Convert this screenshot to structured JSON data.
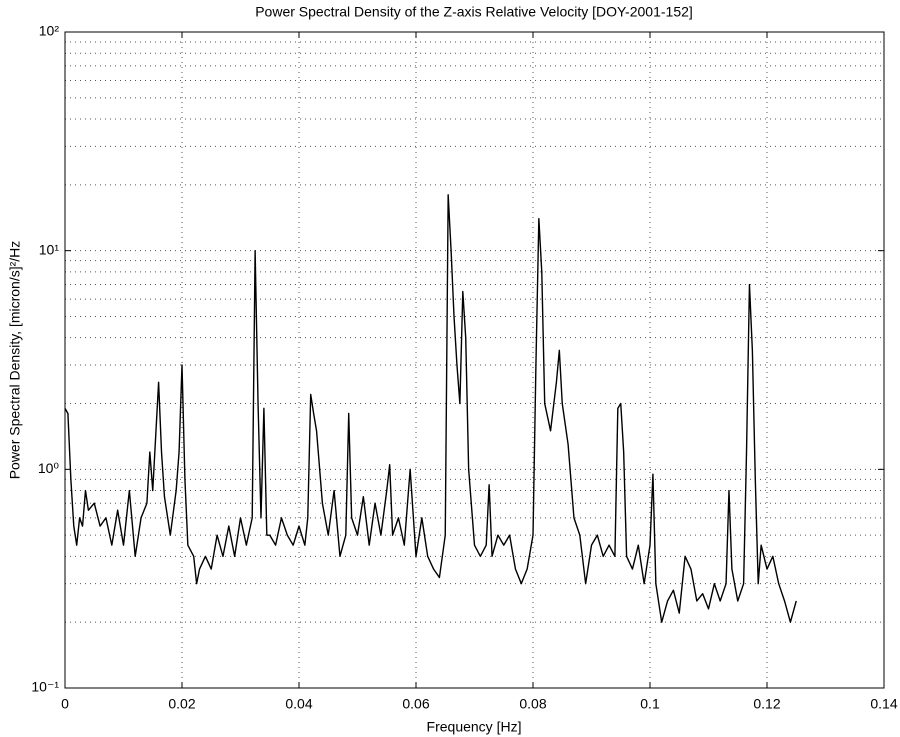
{
  "chart_data": {
    "type": "line",
    "title": "Power Spectral Density of the Z-axis Relative Velocity [DOY-2001-152]",
    "xlabel": "Frequency [Hz]",
    "ylabel": "Power Spectral Density, [micron/s]²/Hz",
    "color": "#000000",
    "yscale": "log",
    "grid": true,
    "minor_grid": true,
    "xlim": [
      0,
      0.14
    ],
    "xticks": [
      0,
      0.02,
      0.04,
      0.06,
      0.08,
      0.1,
      0.12,
      0.14
    ],
    "ylim": [
      0.1,
      100
    ],
    "yticks": [
      {
        "value": 0.1,
        "label": "10⁻¹"
      },
      {
        "value": 1,
        "label": "10⁰"
      },
      {
        "value": 10,
        "label": "10¹"
      },
      {
        "value": 100,
        "label": "10²"
      }
    ],
    "x": [
      0,
      0.0005,
      0.001,
      0.0015,
      0.002,
      0.0025,
      0.003,
      0.0035,
      0.004,
      0.005,
      0.006,
      0.007,
      0.008,
      0.009,
      0.01,
      0.011,
      0.012,
      0.013,
      0.014,
      0.0145,
      0.015,
      0.016,
      0.0165,
      0.017,
      0.018,
      0.019,
      0.0195,
      0.02,
      0.0205,
      0.021,
      0.022,
      0.0225,
      0.023,
      0.024,
      0.025,
      0.026,
      0.027,
      0.028,
      0.029,
      0.03,
      0.031,
      0.032,
      0.0325,
      0.033,
      0.0335,
      0.034,
      0.0345,
      0.035,
      0.036,
      0.037,
      0.038,
      0.039,
      0.04,
      0.041,
      0.0415,
      0.042,
      0.0425,
      0.043,
      0.044,
      0.045,
      0.046,
      0.047,
      0.048,
      0.0485,
      0.049,
      0.05,
      0.051,
      0.052,
      0.053,
      0.054,
      0.055,
      0.0555,
      0.056,
      0.057,
      0.058,
      0.059,
      0.06,
      0.061,
      0.062,
      0.063,
      0.064,
      0.065,
      0.0655,
      0.066,
      0.0665,
      0.067,
      0.0675,
      0.068,
      0.0685,
      0.069,
      0.07,
      0.071,
      0.072,
      0.0725,
      0.073,
      0.074,
      0.075,
      0.076,
      0.077,
      0.078,
      0.079,
      0.08,
      0.0805,
      0.081,
      0.0815,
      0.082,
      0.083,
      0.084,
      0.0845,
      0.085,
      0.086,
      0.087,
      0.088,
      0.089,
      0.09,
      0.091,
      0.092,
      0.093,
      0.094,
      0.0945,
      0.095,
      0.0955,
      0.096,
      0.097,
      0.098,
      0.099,
      0.1,
      0.1005,
      0.101,
      0.102,
      0.103,
      0.104,
      0.105,
      0.106,
      0.107,
      0.108,
      0.109,
      0.11,
      0.111,
      0.112,
      0.113,
      0.1135,
      0.114,
      0.115,
      0.116,
      0.1165,
      0.117,
      0.1175,
      0.118,
      0.1185,
      0.119,
      0.12,
      0.121,
      0.122,
      0.123,
      0.124,
      0.125
    ],
    "values": [
      1.9,
      1.8,
      0.9,
      0.55,
      0.45,
      0.6,
      0.55,
      0.8,
      0.65,
      0.7,
      0.55,
      0.6,
      0.45,
      0.65,
      0.45,
      0.8,
      0.4,
      0.6,
      0.7,
      1.2,
      0.8,
      2.5,
      1.2,
      0.75,
      0.5,
      0.8,
      1.2,
      3.0,
      0.9,
      0.45,
      0.4,
      0.3,
      0.35,
      0.4,
      0.35,
      0.5,
      0.4,
      0.55,
      0.4,
      0.6,
      0.45,
      0.6,
      10,
      2,
      0.6,
      1.9,
      0.5,
      0.5,
      0.45,
      0.6,
      0.5,
      0.45,
      0.55,
      0.45,
      0.6,
      2.2,
      1.8,
      1.5,
      0.7,
      0.5,
      0.8,
      0.4,
      0.5,
      1.8,
      0.6,
      0.5,
      0.75,
      0.45,
      0.7,
      0.5,
      0.8,
      1.05,
      0.5,
      0.6,
      0.45,
      1.0,
      0.4,
      0.6,
      0.4,
      0.35,
      0.32,
      0.5,
      18,
      10,
      5,
      3,
      2,
      6.5,
      4,
      1.0,
      0.45,
      0.4,
      0.45,
      0.85,
      0.4,
      0.5,
      0.45,
      0.5,
      0.35,
      0.3,
      0.35,
      0.5,
      3,
      14,
      8,
      2,
      1.5,
      2.5,
      3.5,
      2,
      1.3,
      0.6,
      0.5,
      0.3,
      0.45,
      0.5,
      0.4,
      0.45,
      0.4,
      1.9,
      2.0,
      1.2,
      0.4,
      0.35,
      0.45,
      0.3,
      0.45,
      0.95,
      0.3,
      0.2,
      0.25,
      0.28,
      0.22,
      0.4,
      0.35,
      0.25,
      0.27,
      0.23,
      0.3,
      0.25,
      0.3,
      0.8,
      0.35,
      0.25,
      0.3,
      1.2,
      7,
      3.5,
      0.9,
      0.3,
      0.45,
      0.35,
      0.4,
      0.3,
      0.25,
      0.2,
      0.25
    ]
  }
}
